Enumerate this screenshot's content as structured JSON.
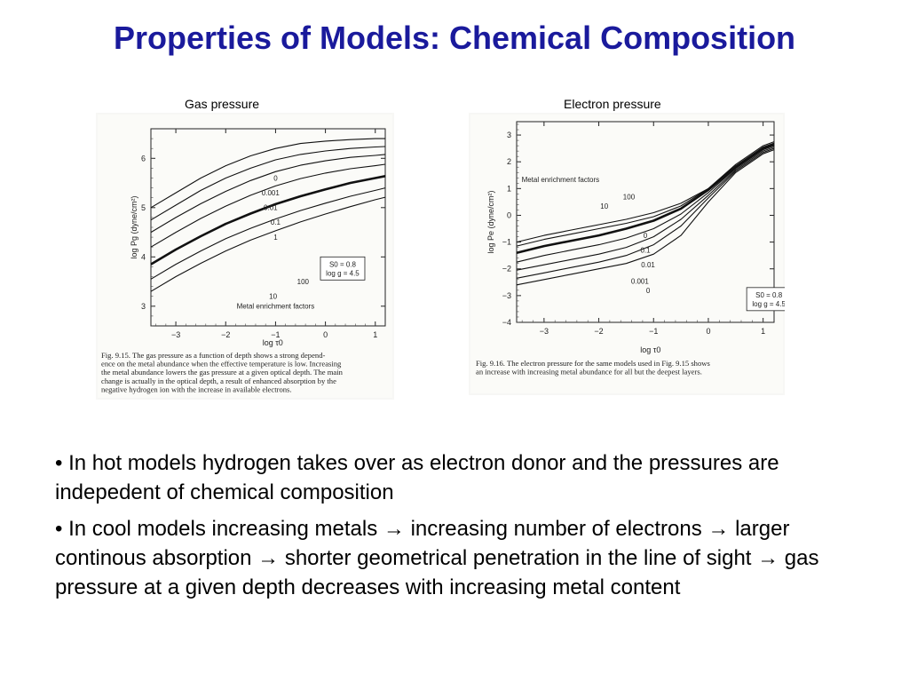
{
  "slide": {
    "title": "Properties of Models: Chemical Composition",
    "bullets": [
      "• In hot models hydrogen takes over as electron donor and the pressures are indepedent of chemical composition",
      "• In cool models increasing metals → increasing number of electrons → larger continous absorption → shorter geometrical penetration in the line of sight → gas pressure at a given depth decreases with increasing metal content"
    ]
  },
  "chart_data": [
    {
      "type": "line",
      "heading": "Gas pressure",
      "xlabel": "log τ0",
      "ylabel": "log Pg (dyne/cm²)",
      "xlim": [
        -3.5,
        1.2
      ],
      "ylim": [
        2.6,
        6.6
      ],
      "x_ticks": [
        "−3",
        "−2",
        "−1",
        "0",
        "1"
      ],
      "y_ticks": [
        "3",
        "4",
        "5",
        "6"
      ],
      "legend_text": "Metal enrichment factors",
      "params": [
        "S0 = 0.8",
        "log g = 4.5"
      ],
      "caption": [
        "Fig. 9.15.   The gas pressure as a function of depth shows a strong depend-",
        "ence on the metal abundance when the effective temperature is low. Increasing",
        "the metal abundance lowers the gas pressure at a given optical depth. The main",
        "change is actually in the optical depth, a result of enhanced absorption by the",
        "negative hydrogen ion with the increase in available electrons."
      ],
      "x": [
        -3.5,
        -3.0,
        -2.5,
        -2.0,
        -1.5,
        -1.0,
        -0.5,
        0.0,
        0.5,
        1.0,
        1.2
      ],
      "series": [
        {
          "name": "0",
          "values": [
            5.0,
            5.3,
            5.6,
            5.85,
            6.05,
            6.2,
            6.3,
            6.35,
            6.38,
            6.4,
            6.4
          ]
        },
        {
          "name": "0.001",
          "values": [
            4.75,
            5.05,
            5.35,
            5.6,
            5.8,
            5.97,
            6.08,
            6.15,
            6.2,
            6.23,
            6.24
          ]
        },
        {
          "name": "0.01",
          "values": [
            4.5,
            4.8,
            5.08,
            5.33,
            5.55,
            5.73,
            5.86,
            5.95,
            6.02,
            6.06,
            6.08
          ]
        },
        {
          "name": "0.1",
          "values": [
            4.2,
            4.5,
            4.78,
            5.03,
            5.25,
            5.44,
            5.59,
            5.7,
            5.79,
            5.85,
            5.88
          ]
        },
        {
          "name": "1",
          "values": [
            3.85,
            4.15,
            4.42,
            4.67,
            4.88,
            5.07,
            5.23,
            5.37,
            5.5,
            5.6,
            5.64
          ]
        },
        {
          "name": "10",
          "values": [
            3.55,
            3.85,
            4.12,
            4.37,
            4.58,
            4.77,
            4.94,
            5.09,
            5.23,
            5.35,
            5.4
          ]
        },
        {
          "name": "100",
          "values": [
            3.3,
            3.6,
            3.87,
            4.12,
            4.34,
            4.53,
            4.71,
            4.87,
            5.02,
            5.16,
            5.21
          ]
        }
      ],
      "highlight_series": "1"
    },
    {
      "type": "line",
      "heading": "Electron  pressure",
      "xlabel": "log τ0",
      "ylabel": "log Pe (dyne/cm²)",
      "xlim": [
        -3.5,
        1.2
      ],
      "ylim": [
        -4,
        3.5
      ],
      "x_ticks": [
        "−3",
        "−2",
        "−1",
        "0",
        "1"
      ],
      "y_ticks": [
        "3",
        "2",
        "1",
        "0",
        "−1",
        "−2",
        "−3",
        "−4"
      ],
      "legend_text": "Metal enrichment factors",
      "params": [
        "S0 = 0.8",
        "log g = 4.5"
      ],
      "caption": [
        "Fig. 9.16.   The electron pressure for the same models used in Fig. 9.15 shows",
        "an increase with increasing metal abundance for all but the deepest layers."
      ],
      "x": [
        -3.5,
        -3.0,
        -2.5,
        -2.0,
        -1.5,
        -1.0,
        -0.5,
        0.0,
        0.5,
        1.0,
        1.2
      ],
      "series": [
        {
          "name": "100",
          "values": [
            -1.0,
            -0.75,
            -0.55,
            -0.35,
            -0.15,
            0.1,
            0.45,
            1.0,
            1.9,
            2.6,
            2.75
          ]
        },
        {
          "name": "10",
          "values": [
            -1.15,
            -0.9,
            -0.7,
            -0.5,
            -0.3,
            -0.05,
            0.35,
            1.0,
            1.85,
            2.55,
            2.7
          ]
        },
        {
          "name": "0",
          "values": [
            -1.4,
            -1.15,
            -0.95,
            -0.75,
            -0.5,
            -0.2,
            0.25,
            0.95,
            1.8,
            2.5,
            2.65
          ]
        },
        {
          "name": "0.1",
          "values": [
            -1.75,
            -1.5,
            -1.3,
            -1.1,
            -0.85,
            -0.5,
            0.05,
            0.85,
            1.75,
            2.45,
            2.6
          ]
        },
        {
          "name": "0.01",
          "values": [
            -2.05,
            -1.85,
            -1.65,
            -1.45,
            -1.2,
            -0.8,
            -0.15,
            0.75,
            1.7,
            2.4,
            2.55
          ]
        },
        {
          "name": "0.001",
          "values": [
            -2.35,
            -2.15,
            -1.95,
            -1.75,
            -1.5,
            -1.1,
            -0.4,
            0.65,
            1.65,
            2.35,
            2.5
          ]
        },
        {
          "name": "0",
          "values": [
            -2.6,
            -2.4,
            -2.2,
            -2.0,
            -1.8,
            -1.45,
            -0.75,
            0.5,
            1.6,
            2.3,
            2.45
          ]
        }
      ],
      "highlight_series": "0"
    }
  ]
}
